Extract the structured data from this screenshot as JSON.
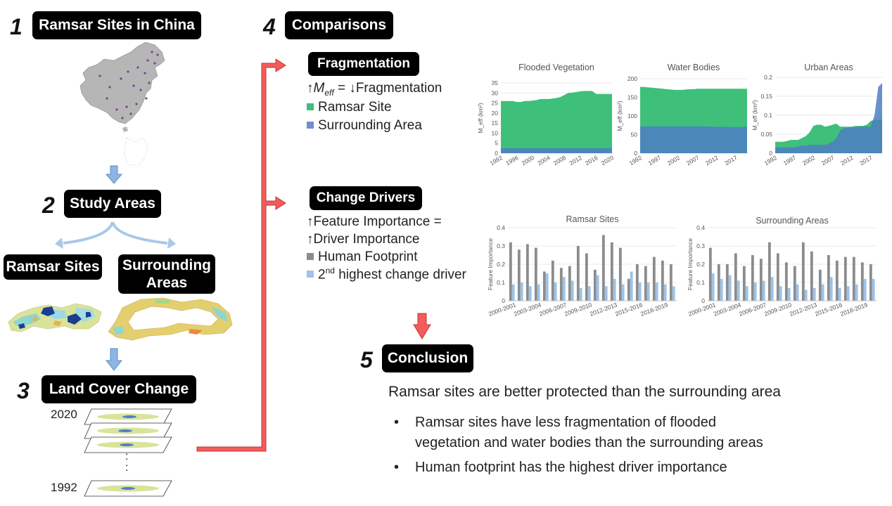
{
  "steps": {
    "s1": {
      "num": "1",
      "label": "Ramsar Sites in China"
    },
    "s2": {
      "num": "2",
      "label": "Study Areas",
      "left": "Ramsar Sites",
      "right": "Surrounding Areas"
    },
    "s3": {
      "num": "3",
      "label": "Land Cover Change",
      "year_top": "2020",
      "year_bottom": "1992",
      "ellipsis": ":"
    },
    "s4": {
      "num": "4",
      "label": "Comparisons"
    },
    "s5": {
      "num": "5",
      "label": "Conclusion"
    }
  },
  "fragmentation": {
    "label": "Fragmentation",
    "eq_meff": "M",
    "eq_sub": "eff",
    "eq_rest": " =  ↓Fragmentation",
    "eq_up": "↑",
    "legend_ramsar": "Ramsar Site",
    "legend_surrounding": "Surrounding Area",
    "ramsar_color": "#3ec07a",
    "surrounding_color": "#6f8fd1"
  },
  "drivers": {
    "label": "Change Drivers",
    "line1": "↑Feature Importance =",
    "line2": "↑Driver Importance",
    "legend_human": "Human Footprint",
    "legend_second_pre": "2",
    "legend_second_sup": "nd",
    "legend_second_post": " highest change driver",
    "human_color": "#8c8c8c",
    "second_color": "#9dc3e6"
  },
  "conclusion": {
    "headline": "Ramsar sites are better protected than the surrounding area",
    "bullets": [
      "Ramsar sites have less fragmentation of flooded vegetation and water bodies than the surrounding areas",
      "Human footprint has the highest driver importance"
    ],
    "bullet_line1": "Ramsar sites have less fragmentation of flooded",
    "bullet_line2": "vegetation and water bodies than the surrounding areas"
  },
  "chart_data": [
    {
      "type": "area",
      "title": "Flooded Vegetation",
      "ylabel": "M_eff (km²)",
      "ylim": [
        0,
        35
      ],
      "yticks": [
        "0",
        "5",
        "10",
        "15",
        "20",
        "25",
        "30",
        "35"
      ],
      "xticks": [
        "1992",
        "1996",
        "2000",
        "2004",
        "2008",
        "2012",
        "2016",
        "2020"
      ],
      "x": [
        1992,
        1993,
        1994,
        1995,
        1996,
        1997,
        1998,
        1999,
        2000,
        2001,
        2002,
        2003,
        2004,
        2005,
        2006,
        2007,
        2008,
        2009,
        2010,
        2011,
        2012,
        2013,
        2014,
        2015,
        2016,
        2017,
        2018,
        2019,
        2020
      ],
      "series": [
        {
          "name": "Ramsar Site",
          "values": [
            26,
            26,
            26,
            26,
            25.5,
            25.5,
            26,
            26,
            26.2,
            26.5,
            27,
            27,
            27,
            27.2,
            27.5,
            28,
            29,
            30,
            30.2,
            30.5,
            30.8,
            31,
            31,
            31,
            29.5,
            29.5,
            29.5,
            29.5,
            29.5
          ]
        },
        {
          "name": "Surrounding Area",
          "values": [
            2.5,
            2.5,
            2.5,
            2.5,
            2.5,
            2.5,
            2.5,
            2.5,
            2.5,
            2.5,
            2.5,
            2.5,
            2.5,
            2.5,
            2.5,
            2.5,
            2.5,
            2.5,
            2.5,
            2.5,
            2.5,
            2.5,
            2.5,
            2.5,
            2.5,
            2.5,
            2.5,
            2.5,
            2.5
          ]
        }
      ]
    },
    {
      "type": "area",
      "title": "Water Bodies",
      "ylabel": "M_eff (km²)",
      "ylim": [
        0,
        200
      ],
      "yticks": [
        "0",
        "50",
        "100",
        "150",
        "200"
      ],
      "xticks": [
        "1992",
        "1997",
        "2002",
        "2007",
        "2012",
        "2017"
      ],
      "x": [
        1992,
        1993,
        1994,
        1995,
        1996,
        1997,
        1998,
        1999,
        2000,
        2001,
        2002,
        2003,
        2004,
        2005,
        2006,
        2007,
        2008,
        2009,
        2010,
        2011,
        2012,
        2013,
        2014,
        2015,
        2016,
        2017,
        2018,
        2019,
        2020
      ],
      "series": [
        {
          "name": "Ramsar Site",
          "values": [
            178,
            178,
            177,
            176,
            175,
            174,
            173,
            172,
            171,
            170,
            170,
            170,
            171,
            172,
            172,
            173,
            173,
            173,
            173,
            173,
            173,
            173,
            173,
            173,
            173,
            173,
            173,
            173,
            173
          ]
        },
        {
          "name": "Surrounding Area",
          "values": [
            72,
            72,
            72,
            72,
            72,
            72,
            72,
            72,
            72,
            72,
            72,
            72,
            72,
            72,
            72,
            72,
            72,
            72,
            72,
            71,
            71,
            71,
            71,
            70,
            70,
            70,
            70,
            71,
            71
          ]
        }
      ]
    },
    {
      "type": "area",
      "title": "Urban Areas",
      "ylabel": "M_eff (km²)",
      "ylim": [
        0,
        0.2
      ],
      "yticks": [
        "0",
        "0.05",
        "0.1",
        "0.15",
        "0.2"
      ],
      "xticks": [
        "1992",
        "1997",
        "2002",
        "2007",
        "2012",
        "2017"
      ],
      "x": [
        1992,
        1993,
        1994,
        1995,
        1996,
        1997,
        1998,
        1999,
        2000,
        2001,
        2002,
        2003,
        2004,
        2005,
        2006,
        2007,
        2008,
        2009,
        2010,
        2011,
        2012,
        2013,
        2014,
        2015,
        2016,
        2017,
        2018,
        2019,
        2020
      ],
      "series": [
        {
          "name": "Ramsar Site",
          "values": [
            0.03,
            0.03,
            0.03,
            0.032,
            0.035,
            0.035,
            0.035,
            0.04,
            0.045,
            0.055,
            0.072,
            0.075,
            0.075,
            0.07,
            0.072,
            0.075,
            0.078,
            0.07,
            0.07,
            0.07,
            0.07,
            0.072,
            0.072,
            0.072,
            0.075,
            0.085,
            0.088,
            0.088,
            0.09
          ]
        },
        {
          "name": "Surrounding Area",
          "values": [
            0.015,
            0.015,
            0.015,
            0.015,
            0.015,
            0.015,
            0.018,
            0.02,
            0.02,
            0.022,
            0.022,
            0.022,
            0.022,
            0.022,
            0.025,
            0.03,
            0.04,
            0.06,
            0.065,
            0.068,
            0.068,
            0.068,
            0.07,
            0.07,
            0.07,
            0.07,
            0.1,
            0.175,
            0.185
          ]
        }
      ]
    },
    {
      "type": "bar",
      "title": "Ramsar Sites",
      "ylabel": "Feature Importance",
      "ylim": [
        0,
        0.4
      ],
      "yticks": [
        "0",
        "0.1",
        "0.2",
        "0.3",
        "0.4"
      ],
      "categories": [
        "2000-2001",
        "2001-2002",
        "2002-2003",
        "2003-2004",
        "2004-2005",
        "2005-2006",
        "2006-2007",
        "2007-2008",
        "2008-2009",
        "2009-2010",
        "2010-2011",
        "2011-2012",
        "2012-2013",
        "2013-2014",
        "2014-2015",
        "2015-2016",
        "2016-2017",
        "2017-2018",
        "2018-2019",
        "2019-2020"
      ],
      "xtick_labels": [
        "2000-2001",
        "2003-2004",
        "2006-2007",
        "2009-2010",
        "2012-2013",
        "2015-2016",
        "2018-2019"
      ],
      "series": [
        {
          "name": "Human Footprint",
          "values": [
            0.32,
            0.28,
            0.31,
            0.29,
            0.16,
            0.22,
            0.18,
            0.19,
            0.3,
            0.26,
            0.17,
            0.36,
            0.32,
            0.29,
            0.12,
            0.2,
            0.19,
            0.24,
            0.22,
            0.2
          ]
        },
        {
          "name": "2nd highest change driver",
          "values": [
            0.09,
            0.1,
            0.08,
            0.09,
            0.15,
            0.1,
            0.13,
            0.11,
            0.07,
            0.08,
            0.14,
            0.08,
            0.12,
            0.09,
            0.16,
            0.1,
            0.1,
            0.1,
            0.09,
            0.08
          ]
        }
      ]
    },
    {
      "type": "bar",
      "title": "Surrounding Areas",
      "ylabel": "Feature Importance",
      "ylim": [
        0,
        0.4
      ],
      "yticks": [
        "0",
        "0.1",
        "0.2",
        "0.3",
        "0.4"
      ],
      "categories": [
        "2000-2001",
        "2001-2002",
        "2002-2003",
        "2003-2004",
        "2004-2005",
        "2005-2006",
        "2006-2007",
        "2007-2008",
        "2008-2009",
        "2009-2010",
        "2010-2011",
        "2011-2012",
        "2012-2013",
        "2013-2014",
        "2014-2015",
        "2015-2016",
        "2016-2017",
        "2017-2018",
        "2018-2019",
        "2019-2020"
      ],
      "xtick_labels": [
        "2000-2001",
        "2003-2004",
        "2006-2007",
        "2009-2010",
        "2012-2013",
        "2015-2016",
        "2018-2019"
      ],
      "series": [
        {
          "name": "Human Footprint",
          "values": [
            0.29,
            0.2,
            0.2,
            0.26,
            0.19,
            0.25,
            0.23,
            0.32,
            0.26,
            0.21,
            0.19,
            0.32,
            0.27,
            0.17,
            0.25,
            0.22,
            0.24,
            0.24,
            0.21,
            0.2
          ]
        },
        {
          "name": "2nd highest change driver",
          "values": [
            0.15,
            0.12,
            0.14,
            0.11,
            0.08,
            0.1,
            0.11,
            0.13,
            0.08,
            0.07,
            0.09,
            0.06,
            0.07,
            0.09,
            0.13,
            0.07,
            0.08,
            0.09,
            0.12,
            0.12
          ]
        }
      ]
    }
  ]
}
